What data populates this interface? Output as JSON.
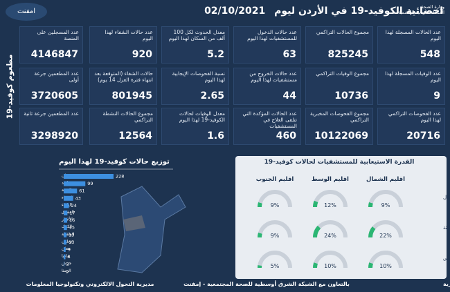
{
  "header": {
    "title": "احصائية الكوفيد-19 في الأردن ليوم",
    "date": "02/10/2021",
    "ministry": "وزارة الصحة",
    "kingdom": "المملكة الأردنية الهاشمية",
    "logo": "امفنت"
  },
  "vaccine": {
    "title": "مطعوم كوفيد-19",
    "items": [
      {
        "label": "عدد المسجلين على المنصة",
        "value": 4146847
      },
      {
        "label": "عدد المطعمين جرعة أولى",
        "value": 3720605
      },
      {
        "label": "عدد المطعمين جرعة ثانية",
        "value": 3298920
      }
    ]
  },
  "stats": [
    [
      {
        "label": "عدد الحالات المسجلة لهذا اليوم",
        "value": 548
      },
      {
        "label": "مجموع الحالات التراكمي",
        "value": 825245
      },
      {
        "label": "عدد حالات الدخول للمستشفيات لهذا اليوم",
        "value": 63
      },
      {
        "label": "معدل الحدوث لكل 100 ألف من السكان لهذا اليوم",
        "value": 5.2
      },
      {
        "label": "عدد حالات الشفاء لهذا اليوم",
        "value": 920
      }
    ],
    [
      {
        "label": "عدد الوفيات المسجلة لهذا اليوم",
        "value": 9
      },
      {
        "label": "مجموع الوفيات التراكمي",
        "value": 10736
      },
      {
        "label": "عدد حالات الخروج من مستشفيات لهذا اليوم",
        "value": 44
      },
      {
        "label": "نسبة الفحوصات الإيجابية لهذا اليوم",
        "value": 2.65
      },
      {
        "label": "حالات الشفاء (المتوقعة بعد انتهاء فترة العزل 14 يوم)",
        "value": 801945
      }
    ],
    [
      {
        "label": "عدد الفحوصات التراكمي لهذا اليوم",
        "value": 20716
      },
      {
        "label": "مجموع الفحوصات المخبرية التراكمي",
        "value": 10122069
      },
      {
        "label": "عدد الحالات المؤكدة التي تتلقى العلاج في المستشفيات",
        "value": 460
      },
      {
        "label": "معدل الوفيات لحالات الكوفيد-19 لهذا اليوم",
        "value": 1.6
      },
      {
        "label": "مجموع الحالات النشطة التراكمي",
        "value": 12564
      }
    ]
  ],
  "chart_data": {
    "type": "bar",
    "title": "توزيع حالات كوفيد-19 لهذا اليوم",
    "categories": [
      "عمان",
      "اربد",
      "العقبة",
      "الزرقاء",
      "البلقاء",
      "المفرق",
      "الأغوار",
      "الكرك",
      "الطفيلة",
      "عجلون",
      "معان",
      "مادبا",
      "جرش",
      "الرمثا"
    ],
    "values": [
      228,
      99,
      61,
      43,
      24,
      17,
      16,
      15,
      13,
      13,
      9,
      8,
      2,
      0
    ],
    "color": "#3d8fe0"
  },
  "capacity": {
    "title": "القدرة الاستيعابية للمستشفيات لحالات كوفيد-19",
    "regions": [
      "اقليم الشمال",
      "اقليم الوسط",
      "اقليم الجنوب"
    ],
    "rows": [
      {
        "label": "نسبة اشغال اسرة العزل",
        "values": [
          9,
          12,
          9
        ],
        "value_labels": [
          "9%",
          "12%",
          "9%"
        ]
      },
      {
        "label": "نسبة اشغال اسرة العناية الحثيثة",
        "values": [
          22,
          24,
          9
        ],
        "value_labels": [
          "22%",
          "24%",
          "9%"
        ]
      },
      {
        "label": "نسبة اشغال اجهزة التنفس",
        "values": [
          10,
          10,
          5
        ],
        "value_labels": [
          "10%",
          "10%",
          "5%"
        ]
      }
    ],
    "color": "#2bb673"
  },
  "footer": {
    "right": "مديرية الأمراض السارية",
    "center": "بالتعاون مع الشبكة الشرق أوسطية للصحة المجتمعية - إمفنت",
    "left": "مديرية التحول الالكتروني وتكنولوجيا المعلومات"
  }
}
